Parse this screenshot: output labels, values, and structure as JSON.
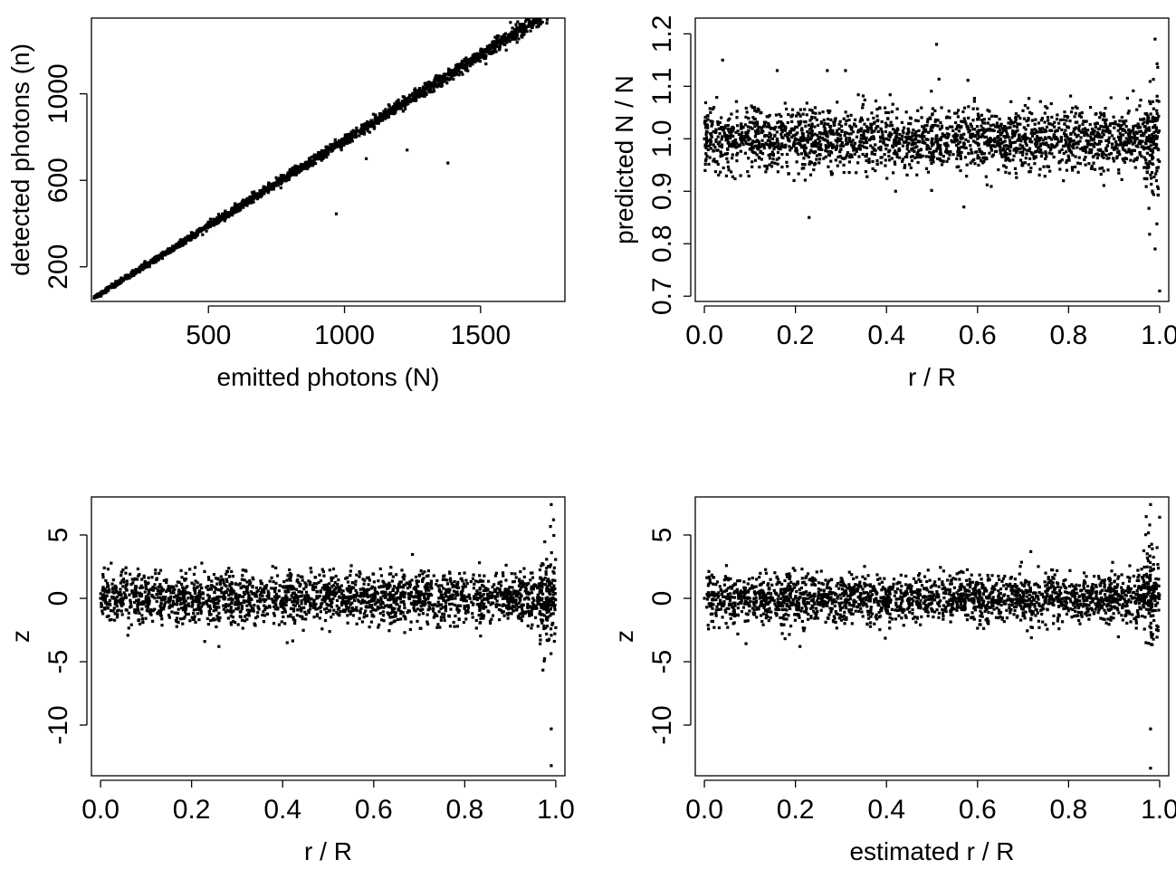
{
  "chart_data": [
    {
      "type": "scatter",
      "xlabel": "emitted photons (N)",
      "ylabel": "detected photons (n)",
      "xlim": [
        70,
        1810
      ],
      "ylim": [
        40,
        1350
      ],
      "xticks": [
        500,
        1000,
        1500
      ],
      "xtick_labels": [
        "500",
        "1000",
        "1500"
      ],
      "yticks": [
        200,
        600,
        1000
      ],
      "ytick_labels": [
        "200",
        "600",
        "1000"
      ],
      "grid": false,
      "legend": "none",
      "color": "#000000",
      "series": [
        {
          "x": [
            80,
            150,
            220,
            300,
            380,
            460,
            540,
            620,
            700,
            780,
            860,
            940,
            1020,
            1100,
            1180,
            1260,
            1340,
            1420,
            1500,
            1580,
            1660,
            1740,
            1790,
            800,
            970,
            1230,
            1380,
            1080,
            1610
          ],
          "y": [
            55,
            112,
            170,
            237,
            300,
            364,
            428,
            492,
            555,
            619,
            684,
            748,
            812,
            876,
            940,
            1005,
            1068,
            1131,
            1197,
            1260,
            1322,
            1388,
            1425,
            650,
            445,
            740,
            680,
            700,
            1330
          ]
        }
      ]
    },
    {
      "type": "scatter",
      "xlabel": "r / R",
      "ylabel": "predicted N / N",
      "xlim": [
        -0.02,
        1.02
      ],
      "ylim": [
        0.69,
        1.23
      ],
      "xticks": [
        0.0,
        0.2,
        0.4,
        0.6,
        0.8,
        1.0
      ],
      "xtick_labels": [
        "0.0",
        "0.2",
        "0.4",
        "0.6",
        "0.8",
        "1.0"
      ],
      "yticks": [
        0.7,
        0.8,
        0.9,
        1.0,
        1.1,
        1.2
      ],
      "ytick_labels": [
        "0.7",
        "0.8",
        "0.9",
        "1.0",
        "1.1",
        "1.2"
      ],
      "grid": false,
      "legend": "none",
      "color": "#000000",
      "series": [
        {
          "x": [
            0.0,
            0.05,
            0.1,
            0.15,
            0.2,
            0.25,
            0.3,
            0.35,
            0.4,
            0.45,
            0.5,
            0.55,
            0.6,
            0.65,
            0.7,
            0.75,
            0.8,
            0.85,
            0.9,
            0.95,
            0.99,
            0.04,
            0.16,
            0.27,
            0.31,
            0.51,
            0.23,
            0.42,
            0.57,
            0.99,
            0.99,
            1.0
          ],
          "y": [
            1.0,
            1.0,
            1.0,
            1.0,
            1.0,
            1.0,
            1.0,
            1.0,
            1.0,
            1.0,
            1.0,
            1.0,
            1.0,
            1.0,
            1.0,
            1.0,
            1.0,
            1.0,
            1.0,
            1.0,
            1.0,
            1.15,
            1.13,
            1.13,
            1.13,
            1.18,
            0.85,
            0.9,
            0.87,
            1.19,
            0.79,
            0.71
          ]
        }
      ]
    },
    {
      "type": "scatter",
      "xlabel": "r / R",
      "ylabel": "z",
      "xlim": [
        -0.02,
        1.02
      ],
      "ylim": [
        -14,
        8
      ],
      "xticks": [
        0.0,
        0.2,
        0.4,
        0.6,
        0.8,
        1.0
      ],
      "xtick_labels": [
        "0.0",
        "0.2",
        "0.4",
        "0.6",
        "0.8",
        "1.0"
      ],
      "yticks": [
        -10,
        -5,
        0,
        5
      ],
      "ytick_labels": [
        "-10",
        "-5",
        "0",
        "5"
      ],
      "grid": false,
      "legend": "none",
      "color": "#000000",
      "series": [
        {
          "x": [
            0.0,
            0.05,
            0.1,
            0.15,
            0.2,
            0.25,
            0.3,
            0.35,
            0.4,
            0.45,
            0.5,
            0.55,
            0.6,
            0.65,
            0.7,
            0.75,
            0.8,
            0.85,
            0.9,
            0.95,
            0.99,
            0.26,
            0.41,
            0.99,
            0.99,
            0.99,
            0.995
          ],
          "y": [
            0,
            0,
            0,
            0,
            0,
            0,
            0,
            0,
            0,
            0,
            0,
            0,
            0,
            0,
            0,
            0,
            0,
            0,
            0,
            0,
            0,
            -3.8,
            -3.5,
            7.4,
            -10.3,
            -13.2,
            6.2
          ]
        }
      ]
    },
    {
      "type": "scatter",
      "xlabel": "estimated r / R",
      "ylabel": "z",
      "xlim": [
        -0.02,
        1.02
      ],
      "ylim": [
        -14,
        8
      ],
      "xticks": [
        0.0,
        0.2,
        0.4,
        0.6,
        0.8,
        1.0
      ],
      "xtick_labels": [
        "0.0",
        "0.2",
        "0.4",
        "0.6",
        "0.8",
        "1.0"
      ],
      "yticks": [
        -10,
        -5,
        0,
        5
      ],
      "ytick_labels": [
        "-10",
        "-5",
        "0",
        "5"
      ],
      "grid": false,
      "legend": "none",
      "color": "#000000",
      "series": [
        {
          "x": [
            0.0,
            0.05,
            0.1,
            0.15,
            0.2,
            0.25,
            0.3,
            0.35,
            0.4,
            0.45,
            0.5,
            0.55,
            0.6,
            0.65,
            0.7,
            0.75,
            0.8,
            0.85,
            0.9,
            0.95,
            0.99,
            0.21,
            0.98,
            0.98,
            0.98,
            1.0
          ],
          "y": [
            0,
            0,
            0,
            0,
            0,
            0,
            0,
            0,
            0,
            0,
            0,
            0,
            0,
            0,
            0,
            0,
            0,
            0,
            0,
            0,
            0,
            -3.8,
            7.4,
            -10.3,
            -13.4,
            6.4
          ]
        }
      ]
    }
  ]
}
